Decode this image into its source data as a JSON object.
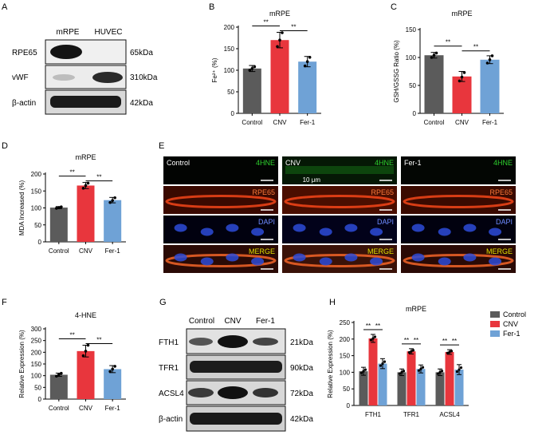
{
  "colors": {
    "control": "#5b5b5b",
    "cnv": "#e8363d",
    "fer1": "#6fa2d6",
    "axis": "#000000"
  },
  "panel_letters": [
    "A",
    "B",
    "C",
    "D",
    "E",
    "F",
    "G",
    "H"
  ],
  "blot_a": {
    "columns": [
      "mRPE",
      "HUVEC"
    ],
    "rows": [
      {
        "label": "RPE65",
        "size": "65kDa"
      },
      {
        "label": "vWF",
        "size": "310kDa"
      },
      {
        "label": "β-actin",
        "size": "42kDa"
      }
    ]
  },
  "blot_g": {
    "columns": [
      "Control",
      "CNV",
      "Fer-1"
    ],
    "rows": [
      {
        "label": "FTH1",
        "size": "21kDa"
      },
      {
        "label": "TFR1",
        "size": "90kDa"
      },
      {
        "label": "ACSL4",
        "size": "72kDa"
      },
      {
        "label": "β-actin",
        "size": "42kDa"
      }
    ]
  },
  "micro_e": {
    "columns": [
      "Control",
      "CNV",
      "Fer-1"
    ],
    "channels": [
      "4HNE",
      "RPE65",
      "DAPI",
      "MERGE"
    ],
    "scale_label": "10 μm"
  },
  "chart_data": [
    {
      "type": "bar",
      "panel": "B",
      "title": "mRPE",
      "ylabel": "Fe²⁺ (%)",
      "categories": [
        "Control",
        "CNV",
        "Fer-1"
      ],
      "values": [
        104,
        170,
        120
      ],
      "errors": [
        7,
        18,
        12
      ],
      "points": [
        [
          100,
          104,
          108
        ],
        [
          155,
          170,
          187
        ],
        [
          110,
          120,
          130
        ]
      ],
      "ylim": [
        0,
        200
      ],
      "yticks": [
        0,
        50,
        100,
        150,
        200
      ],
      "sig": [
        {
          "from": 0,
          "to": 1,
          "label": "**"
        },
        {
          "from": 1,
          "to": 2,
          "label": "**"
        }
      ]
    },
    {
      "type": "bar",
      "panel": "C",
      "title": "mRPE",
      "ylabel": "GSH/GSSG Ratio (%)",
      "categories": [
        "Control",
        "CNV",
        "Fer-1"
      ],
      "values": [
        104,
        66,
        96
      ],
      "errors": [
        5,
        9,
        7
      ],
      "points": [
        [
          100,
          104,
          108
        ],
        [
          58,
          65,
          73
        ],
        [
          90,
          96,
          103
        ]
      ],
      "ylim": [
        0,
        150
      ],
      "yticks": [
        0,
        50,
        100,
        150
      ],
      "sig": [
        {
          "from": 0,
          "to": 1,
          "label": "**"
        },
        {
          "from": 1,
          "to": 2,
          "label": "**"
        }
      ]
    },
    {
      "type": "bar",
      "panel": "D",
      "title": "mRPE",
      "ylabel": "MDA Increased (%)",
      "categories": [
        "Control",
        "CNV",
        "Fer-1"
      ],
      "values": [
        101,
        166,
        123
      ],
      "errors": [
        3,
        9,
        8
      ],
      "points": [
        [
          99,
          101,
          103
        ],
        [
          158,
          166,
          173
        ],
        [
          116,
          122,
          130
        ]
      ],
      "ylim": [
        0,
        200
      ],
      "yticks": [
        0,
        50,
        100,
        150,
        200
      ],
      "sig": [
        {
          "from": 0,
          "to": 1,
          "label": "**"
        },
        {
          "from": 1,
          "to": 2,
          "label": "**"
        }
      ]
    },
    {
      "type": "bar",
      "panel": "F",
      "title": "4-HNE",
      "ylabel": "Relative Expression (%)",
      "categories": [
        "Control",
        "CNV",
        "Fer-1"
      ],
      "values": [
        104,
        205,
        128
      ],
      "errors": [
        7,
        25,
        15
      ],
      "points": [
        [
          98,
          105,
          110
        ],
        [
          185,
          205,
          230
        ],
        [
          118,
          128,
          140
        ]
      ],
      "ylim": [
        0,
        300
      ],
      "yticks": [
        0,
        50,
        100,
        150,
        200,
        250,
        300
      ],
      "sig": [
        {
          "from": 0,
          "to": 1,
          "label": "**"
        },
        {
          "from": 1,
          "to": 2,
          "label": "**"
        }
      ]
    },
    {
      "type": "grouped_bar",
      "panel": "H",
      "title": "mRPE",
      "ylabel": "Relative Expression (%)",
      "categories": [
        "FTH1",
        "TFR1",
        "ACSL4"
      ],
      "series": [
        {
          "name": "Control",
          "values": [
            103,
            100,
            100
          ],
          "errors": [
            12,
            10,
            10
          ]
        },
        {
          "name": "CNV",
          "values": [
            202,
            163,
            161
          ],
          "errors": [
            12,
            8,
            7
          ]
        },
        {
          "name": "Fer-1",
          "values": [
            126,
            110,
            108
          ],
          "errors": [
            15,
            12,
            15
          ]
        }
      ],
      "ylim": [
        0,
        250
      ],
      "yticks": [
        0,
        50,
        100,
        150,
        200,
        250
      ],
      "legend": "top-right",
      "sig_label": "**"
    }
  ]
}
